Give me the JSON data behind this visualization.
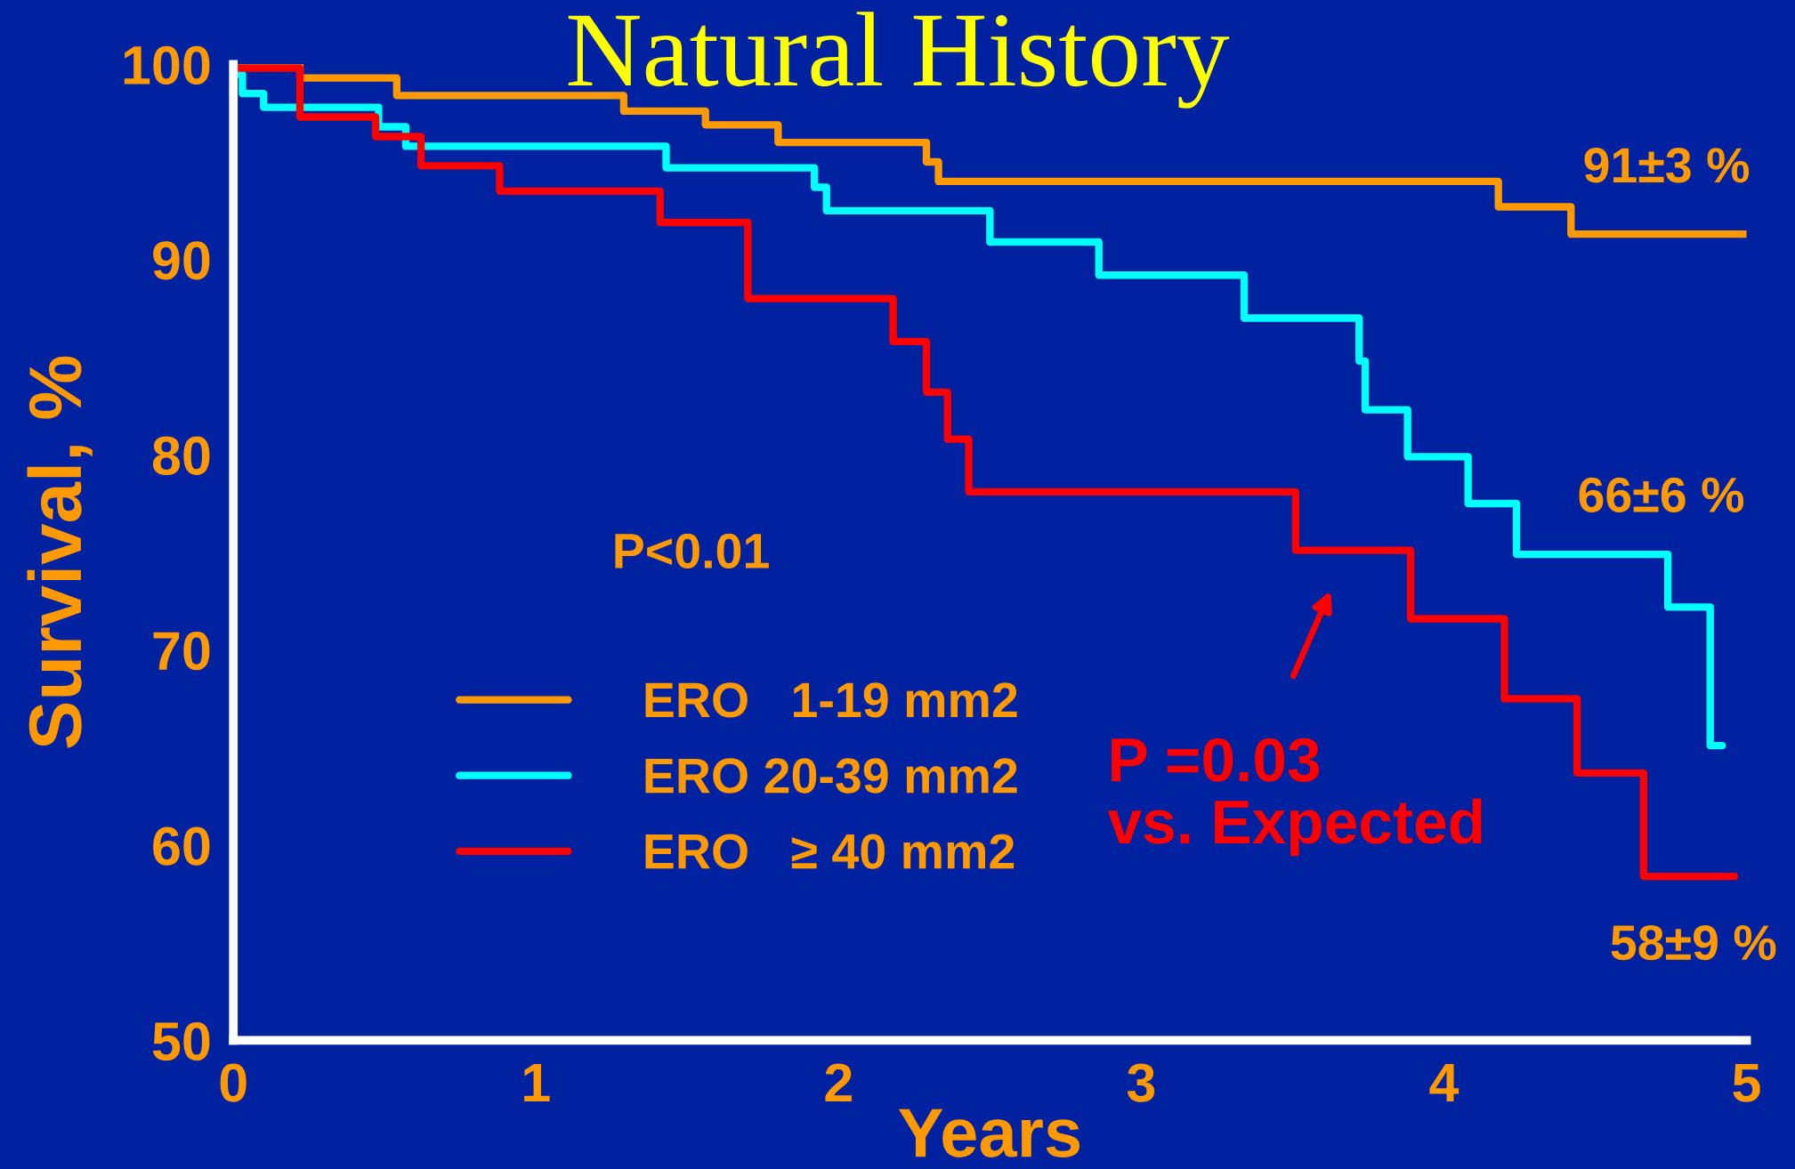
{
  "chart_data": {
    "type": "step",
    "title": "Natural History",
    "xlabel": "Years",
    "ylabel": "Survival, %",
    "xlim": [
      0,
      5
    ],
    "ylim": [
      50,
      100
    ],
    "xticks": [
      0,
      1,
      2,
      3,
      4,
      5
    ],
    "yticks": [
      50,
      60,
      70,
      80,
      90,
      100
    ],
    "grid": false,
    "legend": "bottom left",
    "series": [
      {
        "name": "ERO   1-19 mm2",
        "color": "#ff9900",
        "x": [
          0,
          0.22,
          0.54,
          1.29,
          1.56,
          1.8,
          2.29,
          2.33,
          4.18,
          4.42,
          5.0
        ],
        "values": [
          100,
          99.3,
          98.4,
          97.6,
          96.9,
          96.0,
          95.0,
          94.0,
          92.7,
          91.3,
          91.3
        ]
      },
      {
        "name": "ERO 20-39 mm2",
        "color": "#00ffff",
        "x": [
          0,
          0.03,
          0.1,
          0.48,
          0.57,
          1.43,
          1.92,
          1.96,
          2.5,
          2.86,
          3.34,
          3.72,
          3.74,
          3.88,
          4.08,
          4.24,
          4.74,
          4.88,
          4.92
        ],
        "values": [
          99.5,
          98.5,
          97.8,
          96.8,
          95.8,
          94.7,
          93.7,
          92.5,
          90.9,
          89.2,
          87.0,
          84.8,
          82.3,
          79.9,
          77.5,
          74.9,
          72.2,
          65.1,
          65.1
        ]
      },
      {
        "name": "ERO   ≥ 40 mm2",
        "color": "#ff0000",
        "x": [
          0,
          0.22,
          0.47,
          0.62,
          0.88,
          1.41,
          1.7,
          2.18,
          2.29,
          2.36,
          2.43,
          3.51,
          3.89,
          4.2,
          4.44,
          4.66,
          4.96
        ],
        "values": [
          99.8,
          97.3,
          96.3,
          94.8,
          93.5,
          91.9,
          88.0,
          85.8,
          83.2,
          80.8,
          78.1,
          75.1,
          71.6,
          67.5,
          63.7,
          58.4,
          58.4
        ]
      }
    ],
    "annotations": [
      "P<0.01",
      "91±3 %",
      "66±6 %",
      "58±9 %",
      "P =0.03\nvs. Expected"
    ]
  }
}
